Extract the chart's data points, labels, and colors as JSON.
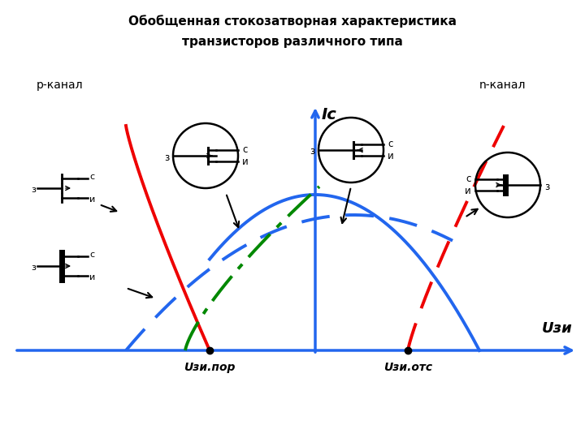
{
  "title_line1": "Обобщенная стокозатворная характеристика",
  "title_line2": "транзисторов различного типа",
  "p_kanal_label": "р-канал",
  "n_kanal_label": "n-канал",
  "ic_label": "Ic",
  "uzi_label": "Uзи",
  "uzi_por_label": "Uзи.пор",
  "uzi_otc_label": "Uзи.отс",
  "bg_color": "#ffffff",
  "blue_color": "#2266ee",
  "red_color": "#ee0000",
  "green_color": "#008800",
  "fig_w": 7.2,
  "fig_h": 5.4,
  "dpi": 100
}
